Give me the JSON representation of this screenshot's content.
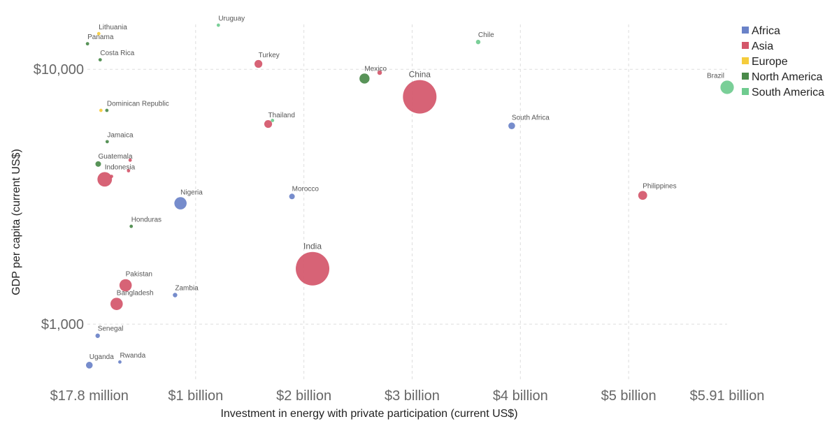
{
  "chart_data": {
    "type": "scatter",
    "title": "",
    "xlabel": "Investment in energy with private participation (current US$)",
    "ylabel": "GDP per capita (current US$)",
    "x_scale": "linear",
    "y_scale": "log",
    "xlim": [
      17800000,
      5910000000
    ],
    "ylim": [
      600,
      15000
    ],
    "x_ticks": [
      {
        "value": 17800000,
        "label": "$17.8 million"
      },
      {
        "value": 1000000000,
        "label": "$1 billion"
      },
      {
        "value": 2000000000,
        "label": "$2 billion"
      },
      {
        "value": 3000000000,
        "label": "$3 billion"
      },
      {
        "value": 4000000000,
        "label": "$4 billion"
      },
      {
        "value": 5000000000,
        "label": "$5 billion"
      },
      {
        "value": 5910000000,
        "label": "$5.91 billion"
      }
    ],
    "y_ticks": [
      {
        "value": 1000,
        "label": "$1,000"
      },
      {
        "value": 10000,
        "label": "$10,000"
      }
    ],
    "grid": true,
    "legend_position": "top-right",
    "colors": {
      "Africa": "#6a82c8",
      "Asia": "#d4566a",
      "Europe": "#f5cc3c",
      "North America": "#4a8a4a",
      "South America": "#6fcb8f"
    },
    "legend": [
      "Africa",
      "Asia",
      "Europe",
      "North America",
      "South America"
    ],
    "points": [
      {
        "label": "Lithuania",
        "region": "Europe",
        "x": 105000000,
        "y": 13800,
        "size": 1.5
      },
      {
        "label": "Panama",
        "region": "North America",
        "x": 1000000,
        "y": 12600,
        "size": 1.5
      },
      {
        "label": "Uruguay",
        "region": "South America",
        "x": 1210000000,
        "y": 14900,
        "size": 1.5
      },
      {
        "label": "Chile",
        "region": "South America",
        "x": 3610000000,
        "y": 12800,
        "size": 2
      },
      {
        "label": "Costa Rica",
        "region": "North America",
        "x": 118000000,
        "y": 10900,
        "size": 1.5
      },
      {
        "label": "Turkey",
        "region": "Asia",
        "x": 1580000000,
        "y": 10500,
        "size": 3.5
      },
      {
        "label": "",
        "region": "Asia",
        "x": 2700000000,
        "y": 9700,
        "size": 2
      },
      {
        "label": "Mexico",
        "region": "North America",
        "x": 2560000000,
        "y": 9200,
        "size": 4.5
      },
      {
        "label": "China",
        "region": "Asia",
        "x": 3070000000,
        "y": 7800,
        "size": 15
      },
      {
        "label": "Brazil",
        "region": "South America",
        "x": 5910000000,
        "y": 8500,
        "size": 6
      },
      {
        "label": "",
        "region": "Europe",
        "x": 125000000,
        "y": 6900,
        "size": 1.5
      },
      {
        "label": "Dominican Republic",
        "region": "North America",
        "x": 180000000,
        "y": 6900,
        "size": 1.5
      },
      {
        "label": "Thailand",
        "region": "Asia",
        "x": 1670000000,
        "y": 6100,
        "size": 3.5
      },
      {
        "label": "",
        "region": "South America",
        "x": 1710000000,
        "y": 6300,
        "size": 1.5
      },
      {
        "label": "South Africa",
        "region": "Africa",
        "x": 3920000000,
        "y": 6000,
        "size": 3
      },
      {
        "label": "Jamaica",
        "region": "North America",
        "x": 183000000,
        "y": 5200,
        "size": 1.5
      },
      {
        "label": "Guatemala",
        "region": "North America",
        "x": 100000000,
        "y": 4250,
        "size": 2.5
      },
      {
        "label": "",
        "region": "Asia",
        "x": 395000000,
        "y": 4400,
        "size": 1.5
      },
      {
        "label": "",
        "region": "Asia",
        "x": 380000000,
        "y": 4000,
        "size": 1.5
      },
      {
        "label": "",
        "region": "Asia",
        "x": 223000000,
        "y": 3800,
        "size": 1.5
      },
      {
        "label": "Indonesia",
        "region": "Asia",
        "x": 160000000,
        "y": 3700,
        "size": 6.5
      },
      {
        "label": "Nigeria",
        "region": "Africa",
        "x": 860000000,
        "y": 2980,
        "size": 5.5
      },
      {
        "label": "Morocco",
        "region": "Africa",
        "x": 1890000000,
        "y": 3170,
        "size": 2.5
      },
      {
        "label": "Philippines",
        "region": "Asia",
        "x": 5130000000,
        "y": 3200,
        "size": 4
      },
      {
        "label": "Honduras",
        "region": "North America",
        "x": 405000000,
        "y": 2420,
        "size": 1.5
      },
      {
        "label": "India",
        "region": "Asia",
        "x": 2080000000,
        "y": 1650,
        "size": 15
      },
      {
        "label": "Pakistan",
        "region": "Asia",
        "x": 353000000,
        "y": 1420,
        "size": 5.5
      },
      {
        "label": "Zambia",
        "region": "Africa",
        "x": 810000000,
        "y": 1300,
        "size": 2
      },
      {
        "label": "Bangladesh",
        "region": "Asia",
        "x": 270000000,
        "y": 1200,
        "size": 5.5
      },
      {
        "label": "Senegal",
        "region": "Africa",
        "x": 95000000,
        "y": 900,
        "size": 2
      },
      {
        "label": "Uganda",
        "region": "Africa",
        "x": 17800000,
        "y": 690,
        "size": 3
      },
      {
        "label": "Rwanda",
        "region": "Africa",
        "x": 300000000,
        "y": 710,
        "size": 1.5
      }
    ]
  }
}
